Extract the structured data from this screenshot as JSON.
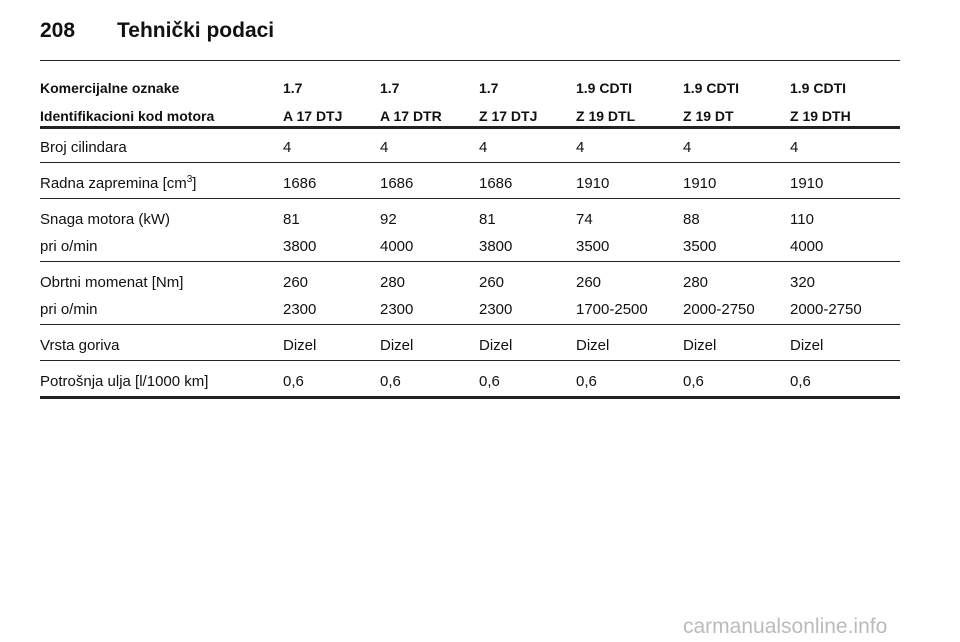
{
  "header": {
    "page_number": "208",
    "title": "Tehnički podaci"
  },
  "table": {
    "header_rows": [
      [
        "Komercijalne oznake",
        "1.7",
        "1.7",
        "1.7",
        "1.9 CDTI",
        "1.9 CDTI",
        "1.9 CDTI"
      ],
      [
        "Identifikacioni kod motora",
        "A 17 DTJ",
        "A 17 DTR",
        "Z 17 DTJ",
        "Z 19 DTL",
        "Z 19 DT",
        "Z 19 DTH"
      ]
    ],
    "groups": [
      [
        {
          "label": "Broj cilindara",
          "values": [
            "4",
            "4",
            "4",
            "4",
            "4",
            "4"
          ]
        }
      ],
      [
        {
          "label": "Radna zapremina [cm",
          "label_sup": "3",
          "label_end": "]",
          "values": [
            "1686",
            "1686",
            "1686",
            "1910",
            "1910",
            "1910"
          ]
        }
      ],
      [
        {
          "label": "Snaga motora (kW)",
          "values": [
            "81",
            "92",
            "81",
            "74",
            "88",
            "110"
          ]
        },
        {
          "label": "pri o/min",
          "values": [
            "3800",
            "4000",
            "3800",
            "3500",
            "3500",
            "4000"
          ]
        }
      ],
      [
        {
          "label": "Obrtni momenat [Nm]",
          "values": [
            "260",
            "280",
            "260",
            "260",
            "280",
            "320"
          ]
        },
        {
          "label": "pri o/min",
          "values": [
            "2300",
            "2300",
            "2300",
            "1700-2500",
            "2000-2750",
            "2000-2750"
          ]
        }
      ],
      [
        {
          "label": "Vrsta goriva",
          "values": [
            "Dizel",
            "Dizel",
            "Dizel",
            "Dizel",
            "Dizel",
            "Dizel"
          ]
        }
      ],
      [
        {
          "label": "Potrošnja ulja [l/1000 km]",
          "values": [
            "0,6",
            "0,6",
            "0,6",
            "0,6",
            "0,6",
            "0,6"
          ]
        }
      ]
    ]
  },
  "watermark": "carmanualsonline.info"
}
